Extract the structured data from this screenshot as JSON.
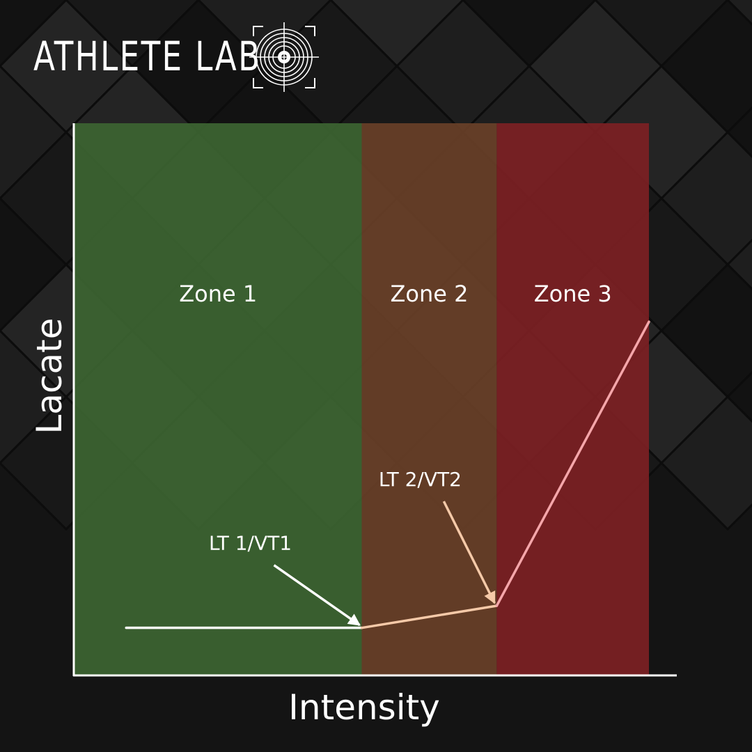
{
  "brand": {
    "name": "ATHLETE LAB",
    "mark_icon": "target-crosshair-icon"
  },
  "colors": {
    "background": "#141414",
    "zone1": "#3c6432",
    "zone2": "#683f28",
    "zone3": "#7c2024",
    "axis": "#ffffff",
    "curve_zone1": "#ffffff",
    "curve_zone2": "#f5c9a8",
    "curve_zone3": "#f5a6aa"
  },
  "chart_data": {
    "type": "line",
    "xlabel": "Intensity",
    "ylabel": "Lacate",
    "ticks_shown": false,
    "grid": false,
    "zones": [
      {
        "label": "Zone 1",
        "x_start": 0,
        "x_end": 50
      },
      {
        "label": "Zone 2",
        "x_start": 50,
        "x_end": 73.5
      },
      {
        "label": "Zone 3",
        "x_start": 73.5,
        "x_end": 100
      }
    ],
    "series": [
      {
        "x": [
          9,
          50,
          73.5,
          100
        ],
        "y": [
          8.5,
          8.5,
          12.5,
          64
        ]
      }
    ],
    "annotations": [
      {
        "text": "LT 1/VT1",
        "x": 50,
        "y": 8.5
      },
      {
        "text": "LT 2/VT2",
        "x": 73.5,
        "y": 12.5
      }
    ]
  }
}
